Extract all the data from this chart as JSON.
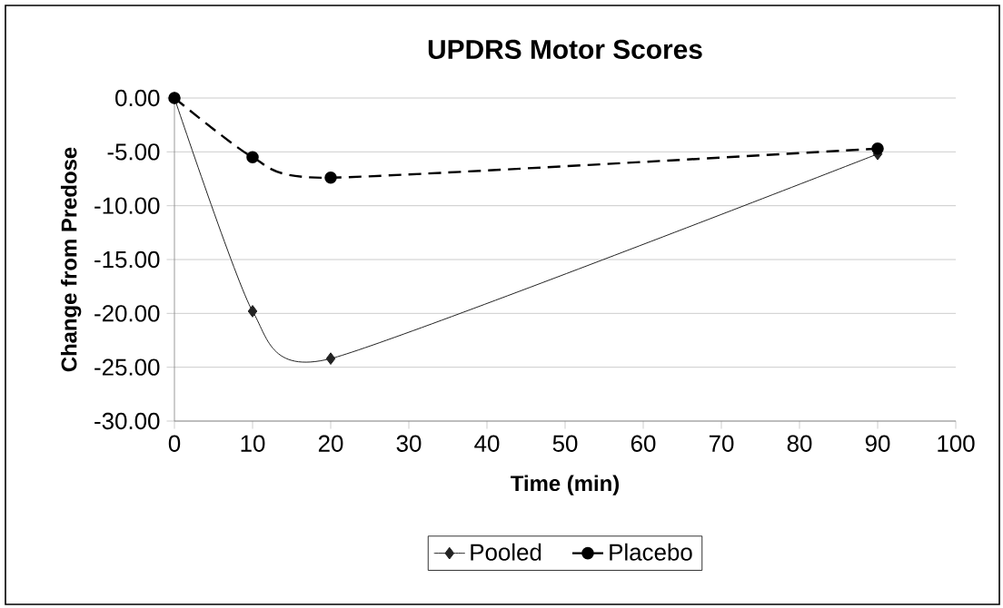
{
  "chart_data": {
    "type": "line",
    "title": "UPDRS Motor Scores",
    "xlabel": "Time (min)",
    "ylabel": "Change from Predose",
    "x": [
      0,
      10,
      20,
      90
    ],
    "series": [
      {
        "name": "Pooled",
        "color": "#222222",
        "values": [
          0,
          -19.8,
          -24.2,
          -5.2
        ],
        "marker": "diamond",
        "line_style": "solid"
      },
      {
        "name": "Placebo",
        "color": "#000000",
        "values": [
          0,
          -5.5,
          -7.4,
          -4.7
        ],
        "marker": "circle",
        "line_style": "dashed"
      }
    ],
    "xlim": [
      0,
      100
    ],
    "xticks": [
      0,
      10,
      20,
      30,
      40,
      50,
      60,
      70,
      80,
      90,
      100
    ],
    "ylim": [
      -30,
      0
    ],
    "yticks": [
      {
        "value": -30,
        "label": "-30.00"
      },
      {
        "value": -25,
        "label": "-25.00"
      },
      {
        "value": -20,
        "label": "-20.00"
      },
      {
        "value": -15,
        "label": "-15.00"
      },
      {
        "value": -10,
        "label": "-10.00"
      },
      {
        "value": -5,
        "label": "-5.00"
      },
      {
        "value": 0,
        "label": "0.00"
      }
    ],
    "grid": "y",
    "legend": "bottom"
  }
}
